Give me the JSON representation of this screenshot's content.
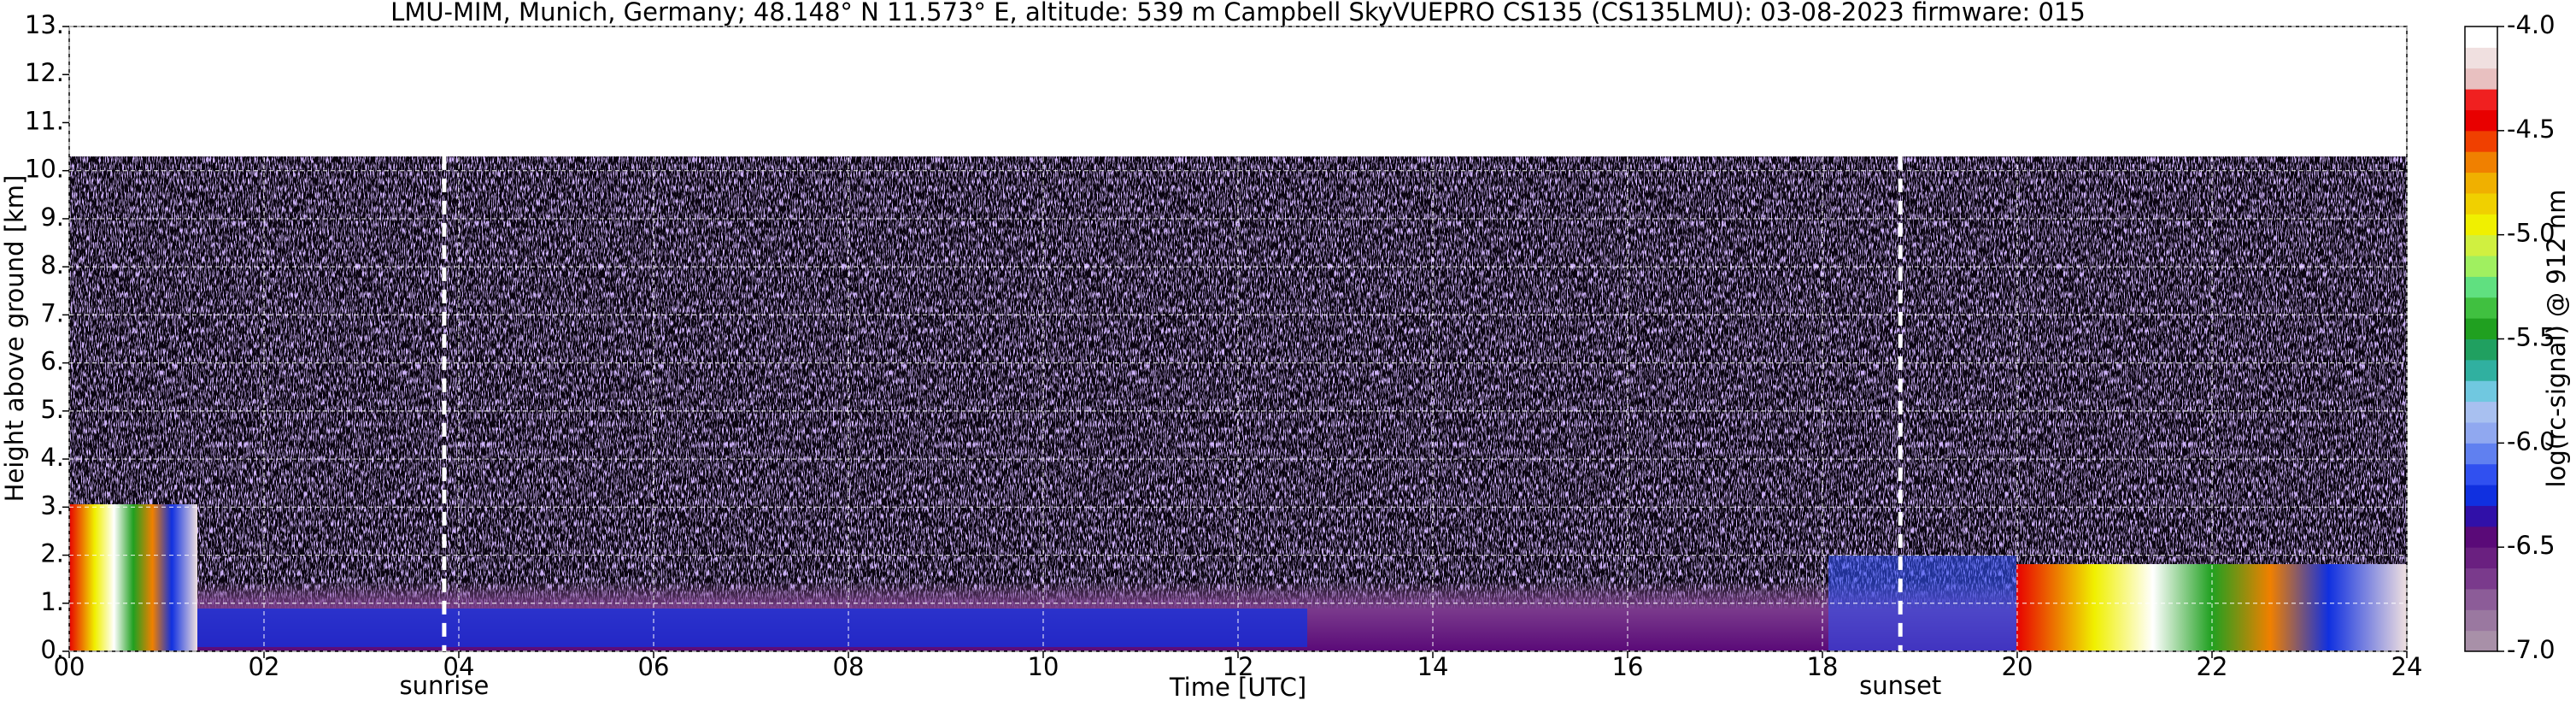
{
  "chart_data": {
    "type": "heatmap",
    "title": "LMU-MIM, Munich, Germany; 48.148° N 11.573° E, altitude: 539 m    Campbell SkyVUEPRO CS135 (CS135LMU): 03-08-2023    firmware: 015",
    "x_label": "Time [UTC]",
    "y_label": "Height above ground [km]",
    "colorbar_label": "log(rc-signal) @ 912 nm",
    "xlim": [
      0,
      24
    ],
    "xticks": [
      {
        "value": 0,
        "label": "00"
      },
      {
        "value": 2,
        "label": "02"
      },
      {
        "value": 4,
        "label": "04"
      },
      {
        "value": 6,
        "label": "06"
      },
      {
        "value": 8,
        "label": "08"
      },
      10,
      12,
      14,
      16,
      18,
      20,
      22,
      24
    ],
    "ylim": [
      0,
      13
    ],
    "yticks": [
      {
        "value": 0,
        "label": "0."
      },
      {
        "value": 1,
        "label": "1."
      },
      {
        "value": 2,
        "label": "2."
      },
      {
        "value": 3,
        "label": "3."
      },
      {
        "value": 4,
        "label": "4."
      },
      {
        "value": 5,
        "label": "5."
      },
      {
        "value": 6,
        "label": "6."
      },
      {
        "value": 7,
        "label": "7."
      },
      {
        "value": 8,
        "label": "8."
      },
      {
        "value": 9,
        "label": "9."
      },
      {
        "value": 10,
        "label": "10."
      },
      {
        "value": 11,
        "label": "11."
      },
      {
        "value": 12,
        "label": "12."
      },
      {
        "value": 13,
        "label": "13."
      }
    ],
    "clim": [
      -7,
      -4
    ],
    "cticks": [
      {
        "value": -7,
        "label": "-7.0"
      },
      -6.5,
      {
        "value": -6,
        "label": "-6.0"
      },
      -5.5,
      {
        "value": -5,
        "label": "-5.0"
      },
      -4.5,
      {
        "value": -4,
        "label": "-4.0"
      }
    ],
    "colormap": [
      "#a890a8",
      "#9a78a0",
      "#8c5c98",
      "#7a3a8c",
      "#6a2080",
      "#5a0a78",
      "#3010a8",
      "#1030e0",
      "#3050f0",
      "#6080f0",
      "#90a8f0",
      "#a8c0f0",
      "#70c8e0",
      "#30b0a0",
      "#20a060",
      "#20a020",
      "#40c040",
      "#60e080",
      "#a0f060",
      "#d0f040",
      "#f0f000",
      "#f0d000",
      "#f0b000",
      "#f08000",
      "#f04000",
      "#e80000",
      "#f02020",
      "#e8c0c0",
      "#f0e0e0",
      "#ffffff"
    ],
    "grid": true,
    "annotations": [
      {
        "text": "sunrise",
        "x": 3.85
      },
      {
        "text": "sunset",
        "x": 18.8
      }
    ]
  }
}
